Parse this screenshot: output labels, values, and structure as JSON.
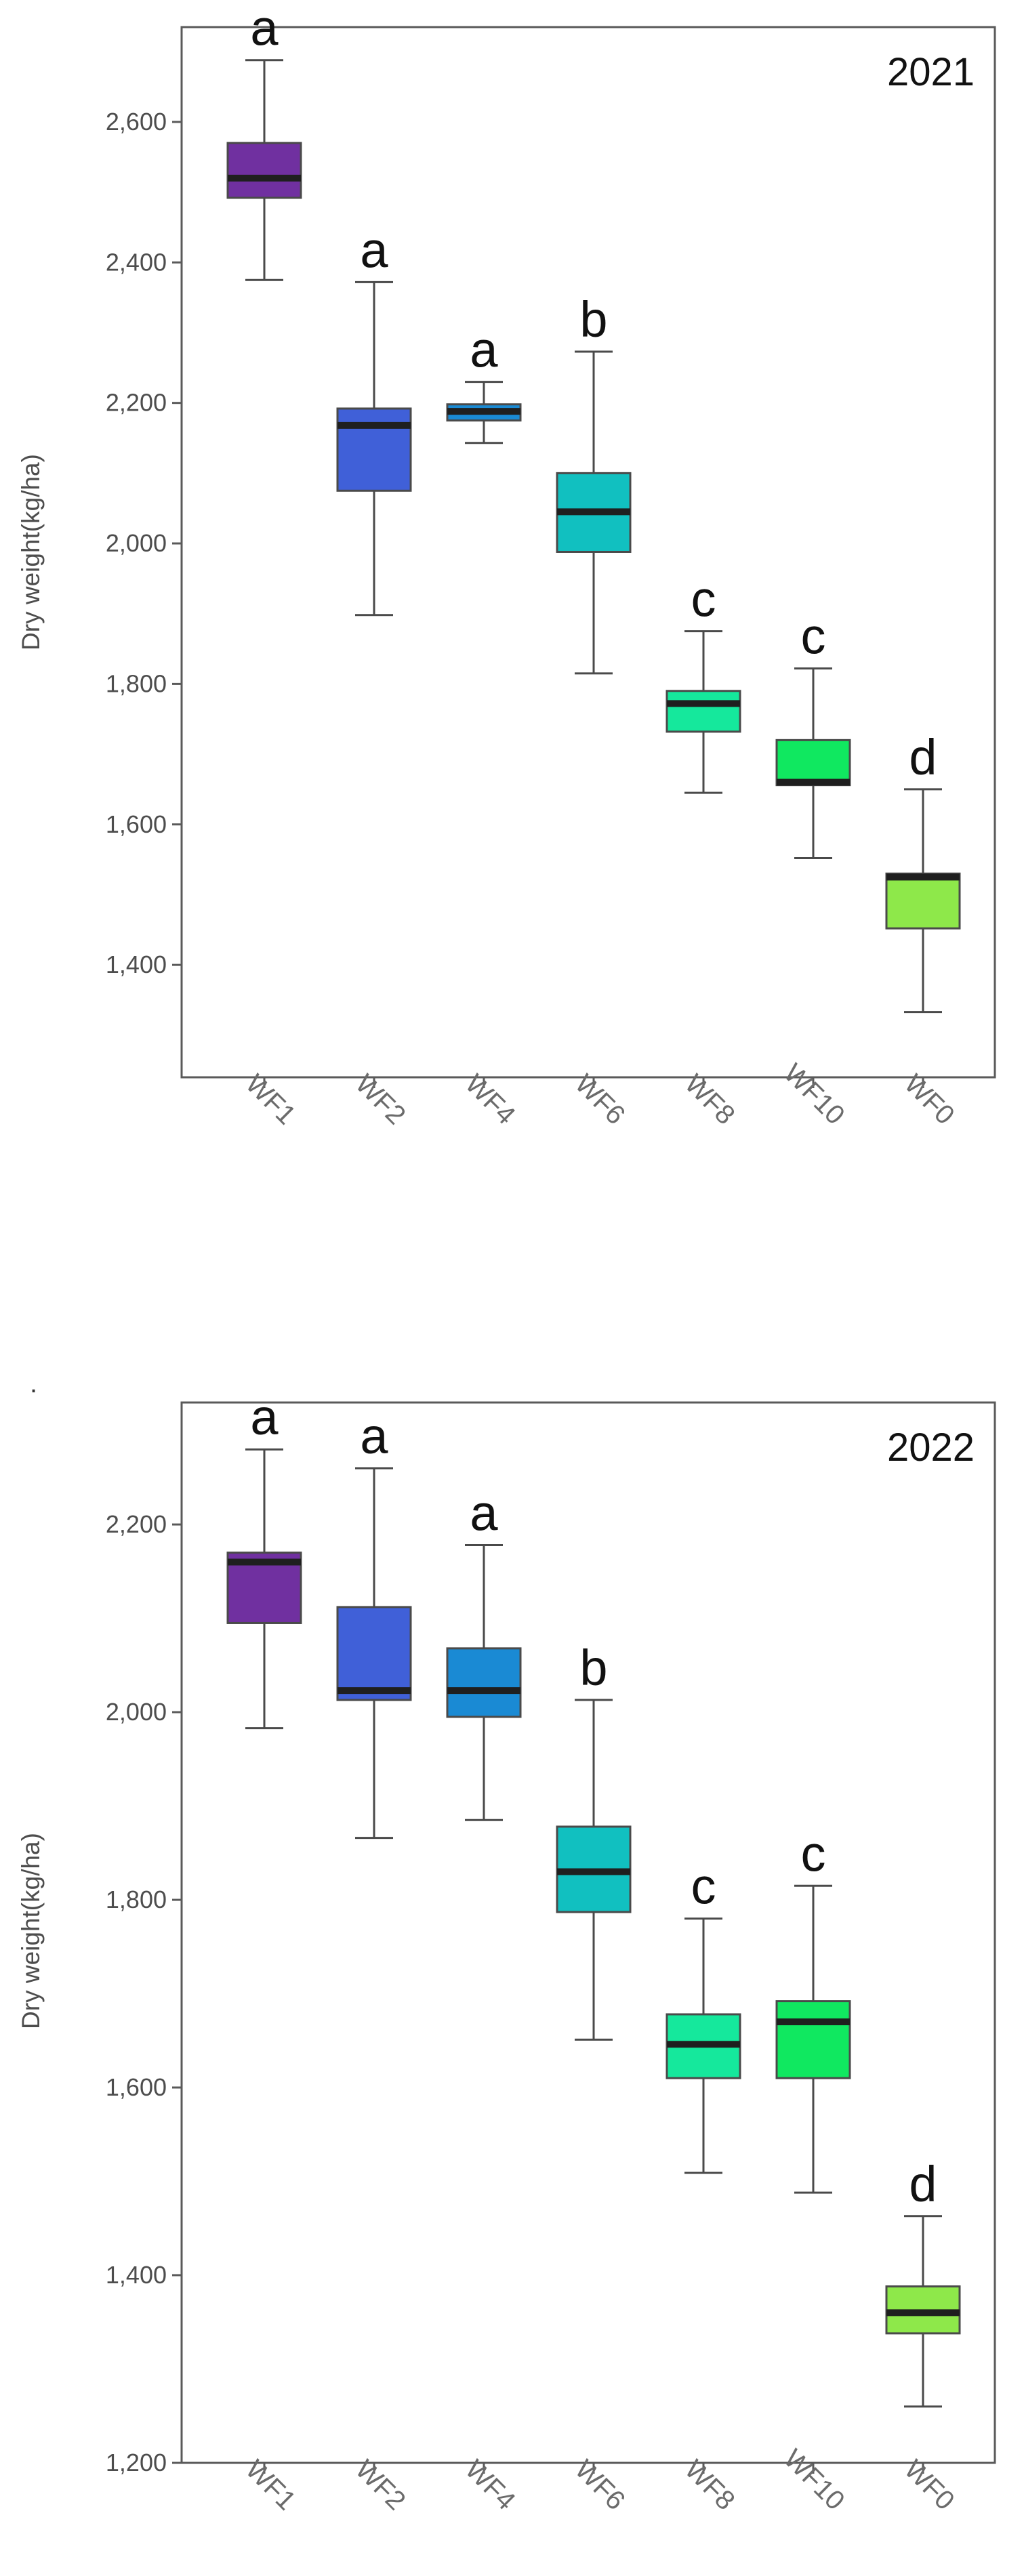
{
  "separator_dot": ".",
  "chart_data": [
    {
      "type": "box",
      "year": "2021",
      "ylabel": "Dry weight(kg/ha)",
      "ylim": [
        1240,
        2735
      ],
      "yticks": [
        1400,
        1600,
        1800,
        2000,
        2200,
        2400,
        2600
      ],
      "ytick_labels": [
        "1,400",
        "1,600",
        "1,800",
        "2,000",
        "2,200",
        "2,400",
        "2,600"
      ],
      "categories": [
        "WF1",
        "WF2",
        "WF4",
        "WF6",
        "WF8",
        "WF10",
        "WF0"
      ],
      "boxes": [
        {
          "min": 2375,
          "q1": 2492,
          "median": 2520,
          "q3": 2570,
          "max": 2688,
          "letter": "a",
          "color": "#7030a0"
        },
        {
          "min": 1898,
          "q1": 2075,
          "median": 2168,
          "q3": 2192,
          "max": 2372,
          "letter": "a",
          "color": "#4060d8"
        },
        {
          "min": 2143,
          "q1": 2175,
          "median": 2188,
          "q3": 2198,
          "max": 2230,
          "letter": "a",
          "color": "#1a8ad4"
        },
        {
          "min": 1815,
          "q1": 1988,
          "median": 2045,
          "q3": 2100,
          "max": 2273,
          "letter": "b",
          "color": "#11c0c0"
        },
        {
          "min": 1645,
          "q1": 1732,
          "median": 1772,
          "q3": 1790,
          "max": 1875,
          "letter": "c",
          "color": "#15e89c"
        },
        {
          "min": 1552,
          "q1": 1656,
          "median": 1660,
          "q3": 1720,
          "max": 1822,
          "letter": "c",
          "color": "#10e860"
        },
        {
          "min": 1333,
          "q1": 1452,
          "median": 1525,
          "q3": 1530,
          "max": 1650,
          "letter": "d",
          "color": "#8ee84a"
        }
      ]
    },
    {
      "type": "box",
      "year": "2022",
      "ylabel": "Dry weight(kg/ha)",
      "ylim": [
        1200,
        2330
      ],
      "yticks": [
        1200,
        1400,
        1600,
        1800,
        2000,
        2200
      ],
      "ytick_labels": [
        "1,200",
        "1,400",
        "1,600",
        "1,800",
        "2,000",
        "2,200"
      ],
      "categories": [
        "WF1",
        "WF2",
        "WF4",
        "WF6",
        "WF8",
        "WF10",
        "WF0"
      ],
      "boxes": [
        {
          "min": 1983,
          "q1": 2095,
          "median": 2160,
          "q3": 2170,
          "max": 2280,
          "letter": "a",
          "color": "#7030a0"
        },
        {
          "min": 1866,
          "q1": 2013,
          "median": 2023,
          "q3": 2112,
          "max": 2260,
          "letter": "a",
          "color": "#4060d8"
        },
        {
          "min": 1885,
          "q1": 1995,
          "median": 2023,
          "q3": 2068,
          "max": 2178,
          "letter": "a",
          "color": "#1a8ad4"
        },
        {
          "min": 1651,
          "q1": 1787,
          "median": 1830,
          "q3": 1878,
          "max": 2013,
          "letter": "b",
          "color": "#11c0c0"
        },
        {
          "min": 1509,
          "q1": 1610,
          "median": 1646,
          "q3": 1678,
          "max": 1780,
          "letter": "c",
          "color": "#15e89c"
        },
        {
          "min": 1488,
          "q1": 1610,
          "median": 1670,
          "q3": 1692,
          "max": 1815,
          "letter": "c",
          "color": "#10e860"
        },
        {
          "min": 1260,
          "q1": 1338,
          "median": 1360,
          "q3": 1388,
          "max": 1463,
          "letter": "d",
          "color": "#8ee84a"
        }
      ]
    }
  ]
}
